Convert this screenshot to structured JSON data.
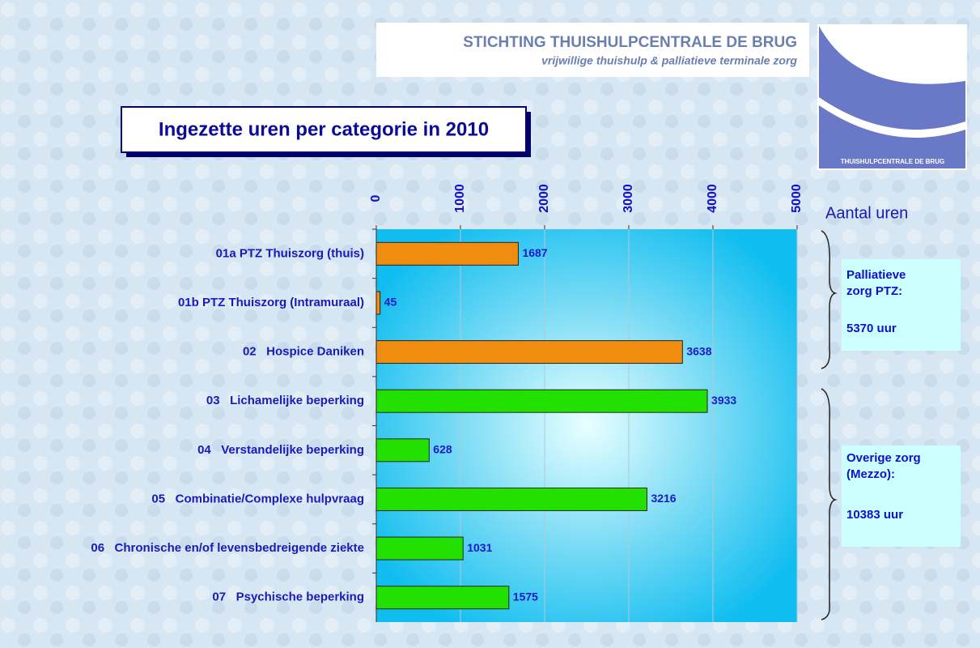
{
  "header": {
    "title": "STICHTING THUISHULPCENTRALE DE BRUG",
    "subtitle": "vrijwillige thuishulp & palliatieve terminale zorg",
    "logo_text": "THUISHULPCENTRALE DE BRUG"
  },
  "chart_data": {
    "type": "hbar",
    "title": "Ingezette uren per categorie in 2010",
    "x_label": "Aantal uren",
    "categories": [
      "01a PTZ Thuiszorg (thuis)",
      "01b PTZ Thuiszorg (Intramuraal)",
      "02   Hospice Daniken",
      "03   Lichamelijke beperking",
      "04   Verstandelijke beperking",
      "05   Combinatie/Complexe hulpvraag",
      "06   Chronische en/of levensbedreigende ziekte",
      "07   Psychische beperking"
    ],
    "values": [
      1687,
      45,
      3638,
      3933,
      628,
      3216,
      1031,
      1575
    ],
    "colors": [
      "#f08c10",
      "#f08c10",
      "#f08c10",
      "#22e000",
      "#22e000",
      "#22e000",
      "#22e000",
      "#22e000"
    ],
    "xlim": [
      0,
      5000
    ],
    "xticks": [
      0,
      1000,
      2000,
      3000,
      4000,
      5000
    ],
    "grid": true,
    "groups": [
      {
        "lines": [
          "Palliatieve",
          "zorg PTZ:"
        ],
        "total": "5370 uur"
      },
      {
        "lines": [
          "Overige zorg",
          "(Mezzo):"
        ],
        "total": "10383 uur"
      }
    ]
  }
}
